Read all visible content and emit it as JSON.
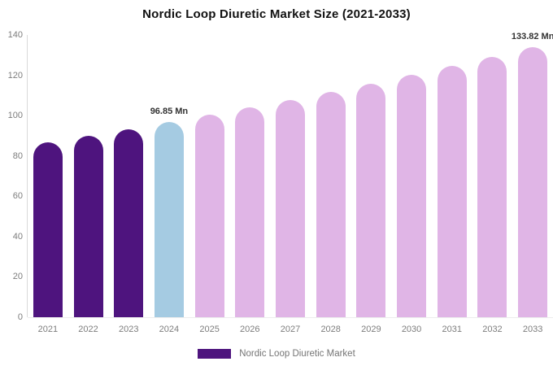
{
  "chart_data": {
    "type": "bar",
    "title": "Nordic Loop Diuretic Market Size (2021-2033)",
    "categories": [
      "2021",
      "2022",
      "2023",
      "2024",
      "2025",
      "2026",
      "2027",
      "2028",
      "2029",
      "2030",
      "2031",
      "2032",
      "2033"
    ],
    "values": [
      86.9,
      90.1,
      93.4,
      96.85,
      100.4,
      104.1,
      107.9,
      111.8,
      115.9,
      120.1,
      124.5,
      129.1,
      133.82
    ],
    "unit": "Mn",
    "xlabel": "",
    "ylabel": "",
    "ylim": [
      0,
      140
    ],
    "y_ticks": [
      0,
      20,
      40,
      60,
      80,
      100,
      120,
      140
    ],
    "grid": false,
    "legend": {
      "label": "Nordic Loop Diuretic Market",
      "position": "bottom"
    },
    "annotations": [
      {
        "text": "96.85 Mn",
        "category": "2024"
      },
      {
        "text": "133.82 Mn",
        "category": "2033"
      }
    ],
    "bar_color_keys": [
      "purple",
      "purple",
      "purple",
      "blue",
      "pink",
      "pink",
      "pink",
      "pink",
      "pink",
      "pink",
      "pink",
      "pink",
      "pink"
    ],
    "colors": {
      "purple": "#4e147e",
      "blue": "#a5cbe2",
      "pink": "#e0b5e6",
      "axis_line": "#d9d9d9",
      "baseline": "#ececec",
      "tick_text": "#7d7d7d",
      "annotation_text": "#333333",
      "legend_text": "#757575",
      "title_text": "#111111"
    }
  }
}
